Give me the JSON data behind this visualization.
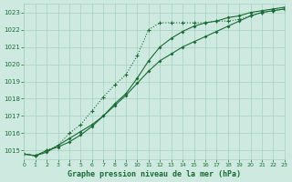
{
  "bg_color": "#ceeae0",
  "grid_color": "#a8cfc0",
  "line_color": "#1a6b35",
  "xlabel": "Graphe pression niveau de la mer (hPa)",
  "xlim": [
    0,
    23
  ],
  "ylim": [
    1014.5,
    1023.5
  ],
  "yticks": [
    1015,
    1016,
    1017,
    1018,
    1019,
    1020,
    1021,
    1022,
    1023
  ],
  "xticks": [
    0,
    1,
    2,
    3,
    4,
    5,
    6,
    7,
    8,
    9,
    10,
    11,
    12,
    13,
    14,
    15,
    16,
    17,
    18,
    19,
    20,
    21,
    22,
    23
  ],
  "series1_x": [
    0,
    1,
    2,
    3,
    4,
    5,
    6,
    7,
    8,
    9,
    10,
    11,
    12,
    13,
    14,
    15,
    16,
    17,
    18,
    19,
    20,
    21,
    22,
    23
  ],
  "series1_y": [
    1014.8,
    1014.7,
    1014.9,
    1015.3,
    1015.7,
    1016.1,
    1016.5,
    1017.0,
    1017.6,
    1018.2,
    1018.9,
    1019.6,
    1020.2,
    1020.6,
    1021.0,
    1021.3,
    1021.6,
    1021.9,
    1022.2,
    1022.5,
    1022.8,
    1023.0,
    1023.1,
    1023.2
  ],
  "series2_x": [
    0,
    1,
    2,
    3,
    4,
    5,
    6,
    7,
    8,
    9,
    10,
    11,
    12,
    13,
    14,
    15,
    16,
    17,
    18,
    19,
    20,
    21,
    22,
    23
  ],
  "series2_y": [
    1014.8,
    1014.7,
    1015.0,
    1015.2,
    1015.5,
    1015.9,
    1016.4,
    1017.0,
    1017.7,
    1018.3,
    1019.2,
    1020.2,
    1021.0,
    1021.5,
    1021.9,
    1022.2,
    1022.4,
    1022.5,
    1022.7,
    1022.8,
    1023.0,
    1023.1,
    1023.2,
    1023.3
  ],
  "series3_x": [
    0,
    1,
    2,
    3,
    4,
    5,
    6,
    7,
    8,
    9,
    10,
    11,
    12,
    13,
    14,
    15,
    16,
    17,
    18,
    19,
    20,
    21,
    22,
    23
  ],
  "series3_y": [
    1014.8,
    1014.7,
    1015.0,
    1015.3,
    1016.0,
    1016.5,
    1017.3,
    1018.1,
    1018.8,
    1019.4,
    1020.5,
    1022.0,
    1022.4,
    1022.4,
    1022.4,
    1022.4,
    1022.4,
    1022.5,
    1022.5,
    1022.6,
    1022.8,
    1023.0,
    1023.1,
    1023.2
  ]
}
